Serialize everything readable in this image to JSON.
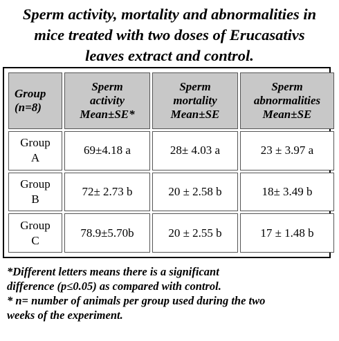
{
  "title": {
    "line1": "Sperm activity, mortality and abnormalities in",
    "line2": "mice treated with two doses of Erucasativs",
    "line3": "leaves extract and control."
  },
  "table": {
    "headers": [
      [
        "Group",
        "(n=8)"
      ],
      [
        "Sperm",
        "activity",
        "Mean±SE*"
      ],
      [
        "Sperm",
        "mortality",
        "Mean±SE"
      ],
      [
        "Sperm",
        "abnormalities",
        "Mean±SE"
      ]
    ],
    "rows": [
      {
        "group": [
          "Group",
          "A"
        ],
        "activity": "69±4.18 a",
        "mortality": "28± 4.03 a",
        "abnormalities": "23 ± 3.97 a"
      },
      {
        "group": [
          "Group",
          "B"
        ],
        "activity": "72± 2.73 b",
        "mortality": "20 ± 2.58 b",
        "abnormalities": "18± 3.49 b"
      },
      {
        "group": [
          "Group",
          "C"
        ],
        "activity": "78.9±5.70b",
        "mortality": "20 ±  2.55 b",
        "abnormalities": "17 ± 1.48 b"
      }
    ]
  },
  "footnote": {
    "line1": "*Different letters means there is a significant",
    "line2": "difference (p≤0.05) as compared with control.",
    "line3": "* n= number of animals per group used during the two",
    "line4": "weeks of the experiment."
  }
}
